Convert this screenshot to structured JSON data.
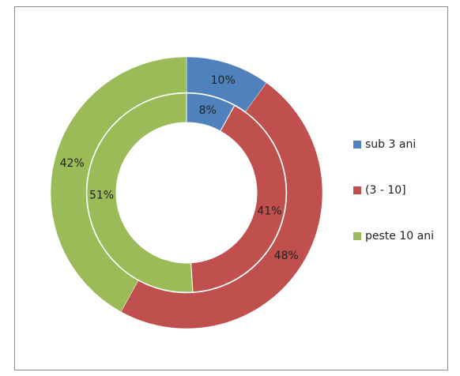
{
  "chart_data": {
    "type": "doughnut",
    "categories": [
      "sub 3 ani",
      "(3 - 10]",
      "peste 10 ani"
    ],
    "colors": [
      "#4f81bd",
      "#c0504d",
      "#9bbb59"
    ],
    "series": [
      {
        "values": [
          10,
          48,
          42
        ],
        "value_labels": [
          "10%",
          "48%",
          "42%"
        ]
      },
      {
        "values": [
          8,
          41,
          51
        ],
        "value_labels": [
          "8%",
          "41%",
          "51%"
        ]
      }
    ],
    "legend": "right"
  }
}
